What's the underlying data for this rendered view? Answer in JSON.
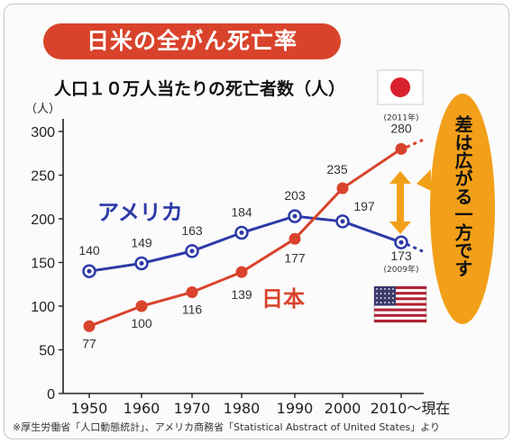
{
  "title": "日米の全がん死亡率",
  "subtitle": "人口１０万人当たりの死亡者数（人）",
  "unit_label": "（人）",
  "callout": "差は広がる一方です",
  "footnote": "※厚生労働省「人口動態統計」、アメリカ商務省「Statistical Abstract of United States」より",
  "colors": {
    "title_bg": "#d9432b",
    "usa": "#2d3aa8",
    "japan": "#d9432b",
    "callout": "#f2a019"
  },
  "chart_data": {
    "type": "line",
    "categories": [
      "1950",
      "1960",
      "1970",
      "1980",
      "1990",
      "2000",
      "2010～現在"
    ],
    "ylim": [
      0,
      300
    ],
    "yticks": [
      "0",
      "50",
      "100",
      "150",
      "200",
      "250",
      "300"
    ],
    "grid": false,
    "series": [
      {
        "name": "アメリカ",
        "color": "#2d3aa8",
        "values": [
          140,
          149,
          163,
          184,
          203,
          197,
          173
        ],
        "labels": [
          "140",
          "149",
          "163",
          "184",
          "203",
          "197",
          "173"
        ],
        "last_note": "(2009年)"
      },
      {
        "name": "日本",
        "color": "#d9432b",
        "values": [
          77,
          100,
          116,
          139,
          177,
          235,
          280
        ],
        "labels": [
          "77",
          "100",
          "116",
          "139",
          "177",
          "235",
          "280"
        ],
        "last_note": "(2011年)"
      }
    ]
  }
}
